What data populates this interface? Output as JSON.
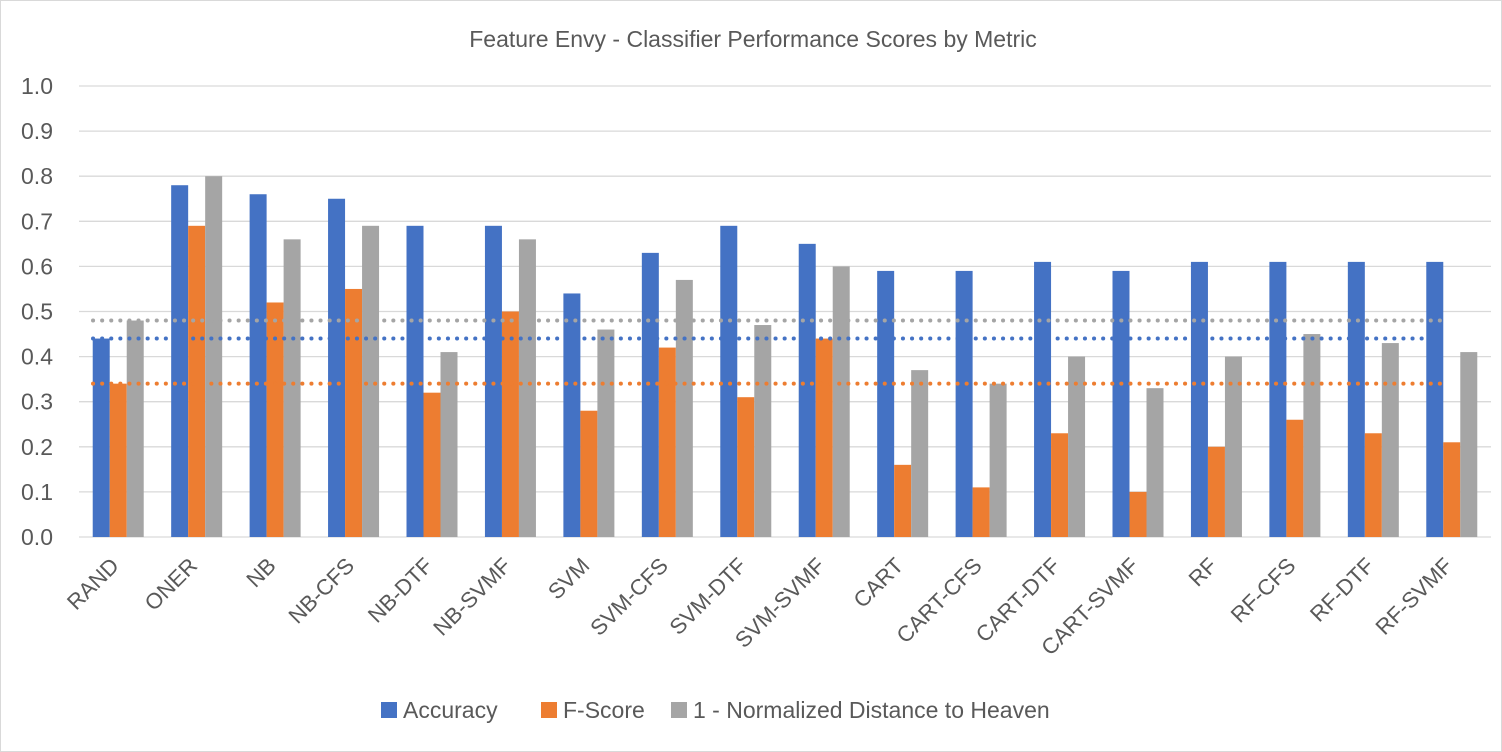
{
  "chart_data": {
    "type": "bar",
    "title": "Feature Envy - Classifier Performance Scores by Metric",
    "xlabel": "",
    "ylabel": "",
    "ylim": [
      0,
      1.0
    ],
    "yticks": [
      "0.0",
      "0.1",
      "0.2",
      "0.3",
      "0.4",
      "0.5",
      "0.6",
      "0.7",
      "0.8",
      "0.9",
      "1.0"
    ],
    "grid": true,
    "legend_position": "bottom",
    "categories": [
      "RAND",
      "ONER",
      "NB",
      "NB-CFS",
      "NB-DTF",
      "NB-SVMF",
      "SVM",
      "SVM-CFS",
      "SVM-DTF",
      "SVM-SVMF",
      "CART",
      "CART-CFS",
      "CART-DTF",
      "CART-SVMF",
      "RF",
      "RF-CFS",
      "RF-DTF",
      "RF-SVMF"
    ],
    "series": [
      {
        "name": "Accuracy",
        "color": "#4472c4",
        "values": [
          0.44,
          0.78,
          0.76,
          0.75,
          0.69,
          0.69,
          0.54,
          0.63,
          0.69,
          0.65,
          0.59,
          0.59,
          0.61,
          0.59,
          0.61,
          0.61,
          0.61,
          0.61
        ]
      },
      {
        "name": "F-Score",
        "color": "#ed7d31",
        "values": [
          0.34,
          0.69,
          0.52,
          0.55,
          0.32,
          0.5,
          0.28,
          0.42,
          0.31,
          0.44,
          0.16,
          0.11,
          0.23,
          0.1,
          0.2,
          0.26,
          0.23,
          0.21
        ]
      },
      {
        "name": "1 - Normalized Distance to Heaven",
        "color": "#a5a5a5",
        "values": [
          0.48,
          0.8,
          0.66,
          0.69,
          0.41,
          0.66,
          0.46,
          0.57,
          0.47,
          0.6,
          0.37,
          0.34,
          0.4,
          0.33,
          0.4,
          0.45,
          0.43,
          0.41
        ]
      }
    ],
    "reference_lines": [
      {
        "series": "1 - Normalized Distance to Heaven",
        "value": 0.48,
        "color": "#a5a5a5",
        "style": "dotted"
      },
      {
        "series": "Accuracy",
        "value": 0.44,
        "color": "#4472c4",
        "style": "dotted"
      },
      {
        "series": "F-Score",
        "value": 0.34,
        "color": "#ed7d31",
        "style": "dotted"
      }
    ]
  }
}
